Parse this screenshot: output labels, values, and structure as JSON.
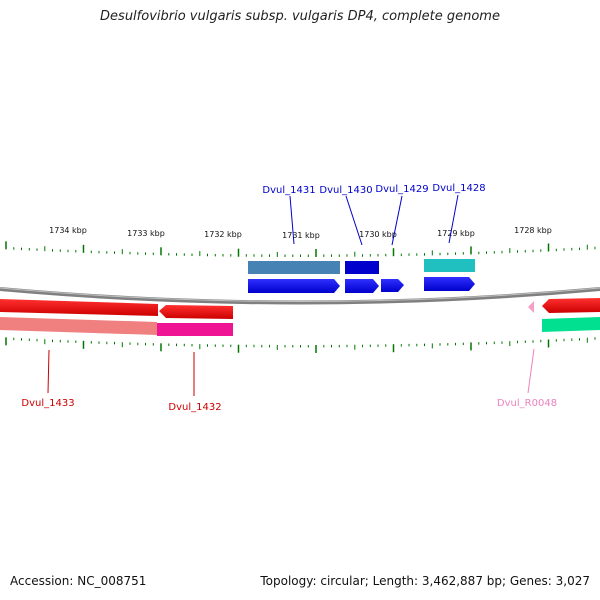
{
  "title": "Desulfovibrio vulgaris subsp. vulgaris DP4, complete genome",
  "footer": {
    "accession": "Accession: NC_008751",
    "summary": "Topology: circular; Length: 3,462,887 bp; Genes: 3,027"
  },
  "scale_labels": [
    "1734 kbp",
    "1733 kbp",
    "1732 kbp",
    "1731 kbp",
    "1730 kbp",
    "1729 kbp",
    "1728 kbp"
  ],
  "gene_labels": {
    "dvul_1431": "Dvul_1431",
    "dvul_1430": "Dvul_1430",
    "dvul_1429": "Dvul_1429",
    "dvul_1428": "Dvul_1428",
    "dvul_1433": "Dvul_1433",
    "dvul_1432": "Dvul_1432",
    "dvul_r0048": "Dvul_R0048"
  },
  "colors": {
    "forward_cds": "#0000ee",
    "forward_gene_steel": "#4682b4",
    "forward_gene_blue": "#0000cd",
    "forward_gene_teal": "#20c0c0",
    "reverse_cds": "#ee0000",
    "reverse_gene_pink": "#f08080",
    "reverse_gene_magenta": "#ee1493",
    "rna_label": "#ee82c0",
    "ticks": "#007700"
  }
}
